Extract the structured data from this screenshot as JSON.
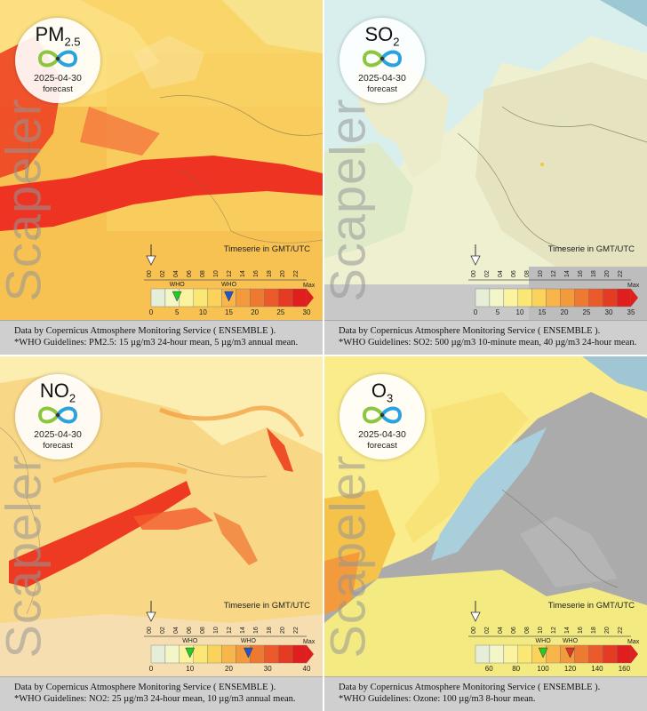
{
  "brand": "Scapeler",
  "date": "2025-04-30",
  "forecast_label": "forecast",
  "timeserie_label": "Timeserie in GMT/UTC",
  "hours": [
    "00",
    "02",
    "04",
    "06",
    "08",
    "10",
    "12",
    "14",
    "16",
    "18",
    "20",
    "22"
  ],
  "who_label": "WHO",
  "max_label": "Max",
  "source_text": "Data by Copernicus Atmosphere Monitoring Service ( ENSEMBLE ).",
  "panels": [
    {
      "id": "pm25",
      "pollutant_main": "PM",
      "pollutant_sub": "2.5",
      "guideline": "*WHO Guidelines: PM2.5: 15 µg/m3 24-hour mean, 5 µg/m3 annual mean.",
      "scale_labels": [
        "0",
        "5",
        "10",
        "15",
        "20",
        "25",
        "30"
      ],
      "scale_min": 0,
      "scale_max": 30,
      "who_markers": [
        {
          "value": 5,
          "color": "#22cc22"
        },
        {
          "value": 15,
          "color": "#2255cc"
        }
      ],
      "current_hour": "00"
    },
    {
      "id": "so2",
      "pollutant_main": "SO",
      "pollutant_sub": "2",
      "guideline": "*WHO Guidelines: SO2: 500 µg/m3 10-minute mean, 40 µg/m3 24-hour mean.",
      "scale_labels": [
        "0",
        "5",
        "10",
        "15",
        "20",
        "25",
        "30",
        "35"
      ],
      "scale_min": 0,
      "scale_max": 35,
      "who_markers": [],
      "current_hour": "00"
    },
    {
      "id": "no2",
      "pollutant_main": "NO",
      "pollutant_sub": "2",
      "guideline": "*WHO Guidelines: NO2: 25 µg/m3 24-hour mean, 10 µg/m3 annual mean.",
      "scale_labels": [
        "0",
        "10",
        "20",
        "30",
        "40"
      ],
      "scale_min": 0,
      "scale_max": 40,
      "who_markers": [
        {
          "value": 10,
          "color": "#22cc22"
        },
        {
          "value": 25,
          "color": "#2255cc"
        }
      ],
      "current_hour": "00"
    },
    {
      "id": "o3",
      "pollutant_main": "O",
      "pollutant_sub": "3",
      "guideline": "*WHO Guidelines: Ozone: 100 µg/m3 8-hour mean.",
      "scale_labels": [
        "60",
        "80",
        "100",
        "120",
        "140",
        "160"
      ],
      "scale_min": 50,
      "scale_max": 165,
      "who_markers": [
        {
          "value": 100,
          "color": "#22cc22"
        },
        {
          "value": 120,
          "color": "#dd3322"
        }
      ],
      "current_hour": "00"
    }
  ]
}
